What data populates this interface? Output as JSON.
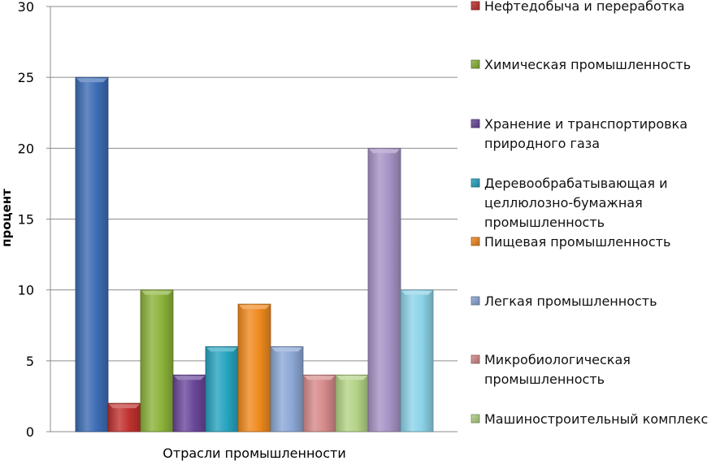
{
  "chart_data": {
    "type": "bar",
    "title": "",
    "xlabel": "Отрасли промышленности",
    "ylabel": "процент",
    "ylim": [
      0,
      30
    ],
    "yticks": [
      0,
      5,
      10,
      15,
      20,
      25,
      30
    ],
    "grid": true,
    "legend_position": "right",
    "series": [
      {
        "label_lines": [
          ""
        ],
        "value": 25,
        "color": "#3D6DB5"
      },
      {
        "label_lines": [
          "Нефтедобыча и переработка"
        ],
        "value": 2,
        "color": "#C0322F"
      },
      {
        "label_lines": [
          "Химическая промышленность"
        ],
        "value": 10,
        "color": "#8CB33A"
      },
      {
        "label_lines": [
          "Хранение и транспортировка",
          "природного газа"
        ],
        "value": 4,
        "color": "#6A479A"
      },
      {
        "label_lines": [
          "Деревообрабатывающая и",
          "целлюлозно-бумажная",
          "промышленность"
        ],
        "value": 6,
        "color": "#27A4BF"
      },
      {
        "label_lines": [
          "Пищевая промышленность"
        ],
        "value": 9,
        "color": "#F08A1E"
      },
      {
        "label_lines": [
          "Легкая промышленность"
        ],
        "value": 6,
        "color": "#8CA8D6"
      },
      {
        "label_lines": [
          "Микробиологическая",
          "промышленность"
        ],
        "value": 4,
        "color": "#D68A8A"
      },
      {
        "label_lines": [
          "Машиностроительный комплекс"
        ],
        "value": 4,
        "color": "#B4D386"
      },
      {
        "label_lines": [
          ""
        ],
        "value": 20,
        "color": "#A693C6"
      },
      {
        "label_lines": [
          ""
        ],
        "value": 10,
        "color": "#8CD3E8"
      }
    ]
  }
}
